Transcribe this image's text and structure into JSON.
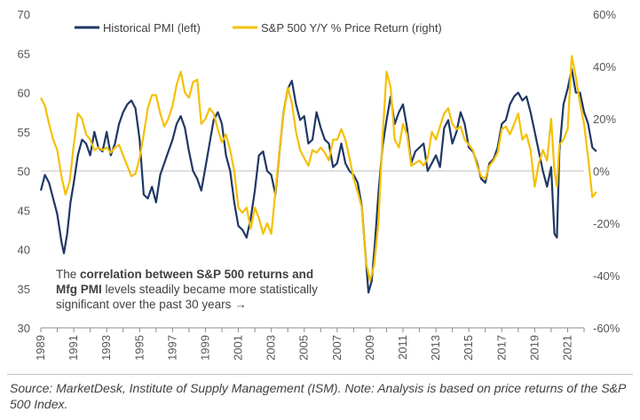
{
  "chart_data": {
    "type": "line",
    "left_axis": {
      "min": 30,
      "max": 70,
      "ticks": [
        "70",
        "65",
        "60",
        "55",
        "50",
        "45",
        "40",
        "35",
        "30"
      ]
    },
    "right_axis": {
      "min": -60,
      "max": 60,
      "ticks": [
        "60%",
        "40%",
        "20%",
        "0%",
        "-20%",
        "-40%",
        "-60%"
      ]
    },
    "x_axis": {
      "start": 1989,
      "end": 2022,
      "ticks": [
        "1989",
        "1991",
        "1993",
        "1995",
        "1997",
        "1999",
        "2001",
        "2003",
        "2005",
        "2007",
        "2009",
        "2011",
        "2013",
        "2015",
        "2017",
        "2019",
        "2021"
      ]
    },
    "legend": [
      {
        "name": "Historical PMI (left)",
        "color": "#1f3864"
      },
      {
        "name": "S&P 500 Y/Y % Price Return (right)",
        "color": "#f5c000"
      }
    ],
    "series": [
      {
        "name": "Historical PMI (left)",
        "axis": "left",
        "color": "#1f3864",
        "points": [
          [
            1989.0,
            47.5
          ],
          [
            1989.25,
            49.5
          ],
          [
            1989.5,
            48.5
          ],
          [
            1989.75,
            46.5
          ],
          [
            1990.0,
            44.5
          ],
          [
            1990.25,
            41.0
          ],
          [
            1990.4,
            39.5
          ],
          [
            1990.6,
            42.0
          ],
          [
            1990.8,
            46.0
          ],
          [
            1991.0,
            48.5
          ],
          [
            1991.25,
            52.0
          ],
          [
            1991.5,
            54.0
          ],
          [
            1991.75,
            53.5
          ],
          [
            1992.0,
            52.0
          ],
          [
            1992.25,
            55.0
          ],
          [
            1992.5,
            53.0
          ],
          [
            1992.75,
            52.5
          ],
          [
            1993.0,
            55.0
          ],
          [
            1993.25,
            52.0
          ],
          [
            1993.5,
            53.5
          ],
          [
            1993.75,
            56.0
          ],
          [
            1994.0,
            57.5
          ],
          [
            1994.25,
            58.5
          ],
          [
            1994.5,
            59.0
          ],
          [
            1994.75,
            58.0
          ],
          [
            1995.0,
            54.0
          ],
          [
            1995.25,
            47.0
          ],
          [
            1995.5,
            46.5
          ],
          [
            1995.75,
            48.0
          ],
          [
            1996.0,
            46.0
          ],
          [
            1996.25,
            49.5
          ],
          [
            1996.5,
            51.0
          ],
          [
            1996.75,
            52.5
          ],
          [
            1997.0,
            54.0
          ],
          [
            1997.25,
            56.0
          ],
          [
            1997.5,
            57.0
          ],
          [
            1997.75,
            55.5
          ],
          [
            1998.0,
            52.5
          ],
          [
            1998.25,
            50.0
          ],
          [
            1998.5,
            49.0
          ],
          [
            1998.75,
            47.5
          ],
          [
            1999.0,
            50.5
          ],
          [
            1999.25,
            53.5
          ],
          [
            1999.5,
            56.5
          ],
          [
            1999.75,
            57.5
          ],
          [
            2000.0,
            56.0
          ],
          [
            2000.25,
            52.0
          ],
          [
            2000.5,
            50.0
          ],
          [
            2000.75,
            46.0
          ],
          [
            2001.0,
            43.0
          ],
          [
            2001.25,
            42.5
          ],
          [
            2001.5,
            41.5
          ],
          [
            2001.75,
            44.0
          ],
          [
            2002.0,
            47.5
          ],
          [
            2002.25,
            52.0
          ],
          [
            2002.5,
            52.5
          ],
          [
            2002.75,
            50.0
          ],
          [
            2003.0,
            49.5
          ],
          [
            2003.25,
            47.0
          ],
          [
            2003.5,
            52.5
          ],
          [
            2003.75,
            57.5
          ],
          [
            2004.0,
            60.5
          ],
          [
            2004.25,
            61.5
          ],
          [
            2004.5,
            58.5
          ],
          [
            2004.75,
            56.5
          ],
          [
            2005.0,
            57.0
          ],
          [
            2005.25,
            53.5
          ],
          [
            2005.5,
            54.0
          ],
          [
            2005.75,
            57.5
          ],
          [
            2006.0,
            55.5
          ],
          [
            2006.25,
            54.0
          ],
          [
            2006.5,
            53.5
          ],
          [
            2006.75,
            50.5
          ],
          [
            2007.0,
            51.0
          ],
          [
            2007.25,
            53.5
          ],
          [
            2007.5,
            51.0
          ],
          [
            2007.75,
            50.0
          ],
          [
            2008.0,
            49.5
          ],
          [
            2008.25,
            48.5
          ],
          [
            2008.5,
            45.5
          ],
          [
            2008.75,
            38.5
          ],
          [
            2008.9,
            34.5
          ],
          [
            2009.1,
            36.0
          ],
          [
            2009.3,
            41.0
          ],
          [
            2009.5,
            47.0
          ],
          [
            2009.75,
            53.0
          ],
          [
            2010.0,
            56.5
          ],
          [
            2010.25,
            59.5
          ],
          [
            2010.5,
            56.0
          ],
          [
            2010.75,
            57.5
          ],
          [
            2011.0,
            58.5
          ],
          [
            2011.25,
            55.5
          ],
          [
            2011.5,
            51.0
          ],
          [
            2011.75,
            52.5
          ],
          [
            2012.0,
            53.0
          ],
          [
            2012.25,
            53.5
          ],
          [
            2012.5,
            50.0
          ],
          [
            2012.75,
            51.0
          ],
          [
            2013.0,
            52.0
          ],
          [
            2013.25,
            50.5
          ],
          [
            2013.5,
            55.5
          ],
          [
            2013.75,
            56.5
          ],
          [
            2014.0,
            53.5
          ],
          [
            2014.25,
            55.0
          ],
          [
            2014.5,
            57.5
          ],
          [
            2014.75,
            56.0
          ],
          [
            2015.0,
            53.0
          ],
          [
            2015.25,
            52.5
          ],
          [
            2015.5,
            51.0
          ],
          [
            2015.75,
            49.0
          ],
          [
            2016.0,
            48.5
          ],
          [
            2016.25,
            51.0
          ],
          [
            2016.5,
            51.5
          ],
          [
            2016.75,
            53.0
          ],
          [
            2017.0,
            56.0
          ],
          [
            2017.25,
            56.5
          ],
          [
            2017.5,
            58.5
          ],
          [
            2017.75,
            59.5
          ],
          [
            2018.0,
            60.0
          ],
          [
            2018.25,
            59.0
          ],
          [
            2018.5,
            59.5
          ],
          [
            2018.75,
            57.5
          ],
          [
            2019.0,
            55.0
          ],
          [
            2019.25,
            52.5
          ],
          [
            2019.5,
            50.0
          ],
          [
            2019.75,
            48.0
          ],
          [
            2020.0,
            50.5
          ],
          [
            2020.2,
            42.0
          ],
          [
            2020.35,
            41.5
          ],
          [
            2020.5,
            52.5
          ],
          [
            2020.75,
            58.5
          ],
          [
            2021.0,
            60.5
          ],
          [
            2021.25,
            63.0
          ],
          [
            2021.5,
            60.0
          ],
          [
            2021.75,
            60.0
          ],
          [
            2022.0,
            57.5
          ],
          [
            2022.25,
            56.0
          ],
          [
            2022.5,
            53.0
          ],
          [
            2022.75,
            52.5
          ]
        ]
      },
      {
        "name": "S&P 500 Y/Y % Price Return (right)",
        "axis": "right",
        "color": "#f5c000",
        "points": [
          [
            1989.0,
            28.0
          ],
          [
            1989.25,
            25.0
          ],
          [
            1989.5,
            18.0
          ],
          [
            1989.75,
            12.0
          ],
          [
            1990.0,
            8.0
          ],
          [
            1990.25,
            -2.0
          ],
          [
            1990.5,
            -9.0
          ],
          [
            1990.75,
            -4.0
          ],
          [
            1991.0,
            10.0
          ],
          [
            1991.25,
            22.0
          ],
          [
            1991.5,
            20.0
          ],
          [
            1991.75,
            14.0
          ],
          [
            1992.0,
            12.0
          ],
          [
            1992.25,
            8.0
          ],
          [
            1992.5,
            9.0
          ],
          [
            1992.75,
            8.0
          ],
          [
            1993.0,
            9.0
          ],
          [
            1993.25,
            7.0
          ],
          [
            1993.5,
            9.0
          ],
          [
            1993.75,
            10.0
          ],
          [
            1994.0,
            6.0
          ],
          [
            1994.25,
            2.0
          ],
          [
            1994.5,
            -2.0
          ],
          [
            1994.75,
            -1.0
          ],
          [
            1995.0,
            5.0
          ],
          [
            1995.25,
            14.0
          ],
          [
            1995.5,
            24.0
          ],
          [
            1995.75,
            29.0
          ],
          [
            1996.0,
            29.0
          ],
          [
            1996.25,
            22.0
          ],
          [
            1996.5,
            17.0
          ],
          [
            1996.75,
            20.0
          ],
          [
            1997.0,
            25.0
          ],
          [
            1997.25,
            33.0
          ],
          [
            1997.5,
            38.0
          ],
          [
            1997.75,
            30.0
          ],
          [
            1998.0,
            28.0
          ],
          [
            1998.25,
            34.0
          ],
          [
            1998.5,
            35.0
          ],
          [
            1998.75,
            18.0
          ],
          [
            1999.0,
            20.0
          ],
          [
            1999.25,
            24.0
          ],
          [
            1999.5,
            22.0
          ],
          [
            1999.75,
            16.0
          ],
          [
            2000.0,
            11.0
          ],
          [
            2000.25,
            14.0
          ],
          [
            2000.5,
            8.0
          ],
          [
            2000.75,
            0.0
          ],
          [
            2001.0,
            -14.0
          ],
          [
            2001.25,
            -16.0
          ],
          [
            2001.5,
            -14.0
          ],
          [
            2001.75,
            -22.0
          ],
          [
            2002.0,
            -14.0
          ],
          [
            2002.25,
            -18.0
          ],
          [
            2002.5,
            -24.0
          ],
          [
            2002.75,
            -20.0
          ],
          [
            2003.0,
            -24.0
          ],
          [
            2003.25,
            -8.0
          ],
          [
            2003.5,
            8.0
          ],
          [
            2003.75,
            22.0
          ],
          [
            2004.0,
            32.0
          ],
          [
            2004.25,
            26.0
          ],
          [
            2004.5,
            15.0
          ],
          [
            2004.75,
            8.0
          ],
          [
            2005.0,
            5.0
          ],
          [
            2005.25,
            2.0
          ],
          [
            2005.5,
            8.0
          ],
          [
            2005.75,
            7.0
          ],
          [
            2006.0,
            9.0
          ],
          [
            2006.25,
            7.0
          ],
          [
            2006.5,
            4.0
          ],
          [
            2006.75,
            12.0
          ],
          [
            2007.0,
            12.0
          ],
          [
            2007.25,
            16.0
          ],
          [
            2007.5,
            12.0
          ],
          [
            2007.75,
            5.0
          ],
          [
            2008.0,
            -3.0
          ],
          [
            2008.25,
            -8.0
          ],
          [
            2008.5,
            -14.0
          ],
          [
            2008.75,
            -35.0
          ],
          [
            2009.0,
            -42.0
          ],
          [
            2009.25,
            -36.0
          ],
          [
            2009.5,
            -20.0
          ],
          [
            2009.75,
            12.0
          ],
          [
            2010.0,
            38.0
          ],
          [
            2010.25,
            32.0
          ],
          [
            2010.5,
            12.0
          ],
          [
            2010.75,
            9.0
          ],
          [
            2011.0,
            18.0
          ],
          [
            2011.25,
            14.0
          ],
          [
            2011.5,
            2.0
          ],
          [
            2011.75,
            3.0
          ],
          [
            2012.0,
            4.0
          ],
          [
            2012.25,
            2.0
          ],
          [
            2012.5,
            5.0
          ],
          [
            2012.75,
            15.0
          ],
          [
            2013.0,
            12.0
          ],
          [
            2013.25,
            17.0
          ],
          [
            2013.5,
            22.0
          ],
          [
            2013.75,
            24.0
          ],
          [
            2014.0,
            18.0
          ],
          [
            2014.25,
            16.0
          ],
          [
            2014.5,
            17.0
          ],
          [
            2014.75,
            12.0
          ],
          [
            2015.0,
            10.0
          ],
          [
            2015.25,
            8.0
          ],
          [
            2015.5,
            2.0
          ],
          [
            2015.75,
            -2.0
          ],
          [
            2016.0,
            -3.0
          ],
          [
            2016.25,
            2.0
          ],
          [
            2016.5,
            4.0
          ],
          [
            2016.75,
            7.0
          ],
          [
            2017.0,
            16.0
          ],
          [
            2017.25,
            17.0
          ],
          [
            2017.5,
            14.0
          ],
          [
            2017.75,
            18.0
          ],
          [
            2018.0,
            22.0
          ],
          [
            2018.25,
            12.0
          ],
          [
            2018.5,
            14.0
          ],
          [
            2018.75,
            8.0
          ],
          [
            2019.0,
            -6.0
          ],
          [
            2019.25,
            3.0
          ],
          [
            2019.5,
            8.0
          ],
          [
            2019.75,
            4.0
          ],
          [
            2020.0,
            20.0
          ],
          [
            2020.2,
            0.0
          ],
          [
            2020.35,
            -6.0
          ],
          [
            2020.5,
            10.0
          ],
          [
            2020.75,
            12.0
          ],
          [
            2021.0,
            16.0
          ],
          [
            2021.25,
            44.0
          ],
          [
            2021.5,
            36.0
          ],
          [
            2021.75,
            26.0
          ],
          [
            2022.0,
            18.0
          ],
          [
            2022.25,
            5.0
          ],
          [
            2022.5,
            -10.0
          ],
          [
            2022.75,
            -8.0
          ]
        ]
      }
    ],
    "reference_line": {
      "axis": "right",
      "value": 0
    }
  },
  "annotation": {
    "prefix": "The ",
    "bold_part": "correlation between S&P 500 returns and Mfg PMI",
    "suffix": "  levels steadily became more statistically significant over the past 30 years →"
  },
  "footer": {
    "source": "Source: MarketDesk, Institute of Supply Management (ISM). Note: Analysis is based on price returns of the S&P 500 Index."
  }
}
